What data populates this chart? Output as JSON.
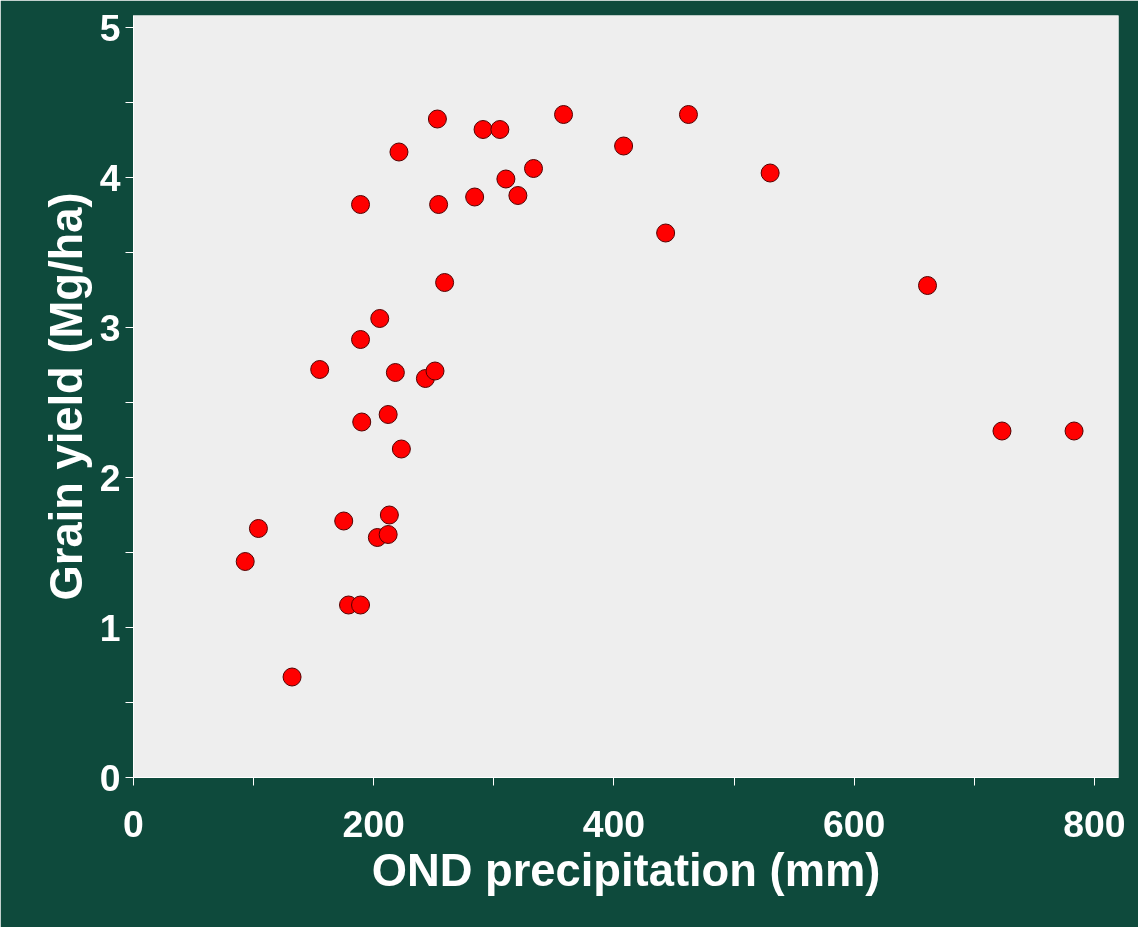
{
  "chart_data": {
    "type": "scatter",
    "xlabel": "OND precipitation (mm)",
    "ylabel": "Grain yield (Mg/ha)",
    "x": [
      93,
      104,
      132,
      155,
      175,
      179,
      189,
      189,
      189,
      190,
      203,
      205,
      212,
      212,
      213,
      218,
      221,
      223,
      243,
      251,
      253,
      254,
      259,
      284,
      291,
      305,
      310,
      320,
      333,
      358,
      408,
      443,
      462,
      530,
      661,
      723,
      783
    ],
    "series": [
      {
        "color": "#ff0000",
        "values": [
          1.44,
          1.66,
          0.67,
          2.72,
          1.71,
          1.15,
          1.15,
          3.82,
          2.92,
          2.37,
          1.6,
          3.06,
          2.42,
          1.62,
          1.75,
          2.7,
          4.17,
          2.19,
          2.66,
          2.71,
          4.39,
          3.82,
          3.3,
          3.87,
          4.32,
          4.32,
          3.99,
          3.88,
          4.06,
          4.42,
          4.21,
          3.63,
          4.42,
          4.03,
          3.28,
          2.31,
          2.31
        ]
      }
    ],
    "xlim": [
      0,
      820
    ],
    "ylim": [
      0,
      5.08
    ],
    "xticks": [
      0,
      {
        "value": 100,
        "label": null
      },
      200,
      {
        "value": 300,
        "label": null
      },
      400,
      {
        "value": 500,
        "label": null
      },
      600,
      {
        "value": 700,
        "label": null
      },
      800
    ],
    "yticks": [
      0,
      {
        "value": 0.5,
        "label": null
      },
      1,
      {
        "value": 1.5,
        "label": null
      },
      2,
      {
        "value": 2.5,
        "label": null
      },
      3,
      {
        "value": 3.5,
        "label": null
      },
      4,
      {
        "value": 4.5,
        "label": null
      },
      5
    ],
    "grid": false,
    "marker": "circle"
  }
}
